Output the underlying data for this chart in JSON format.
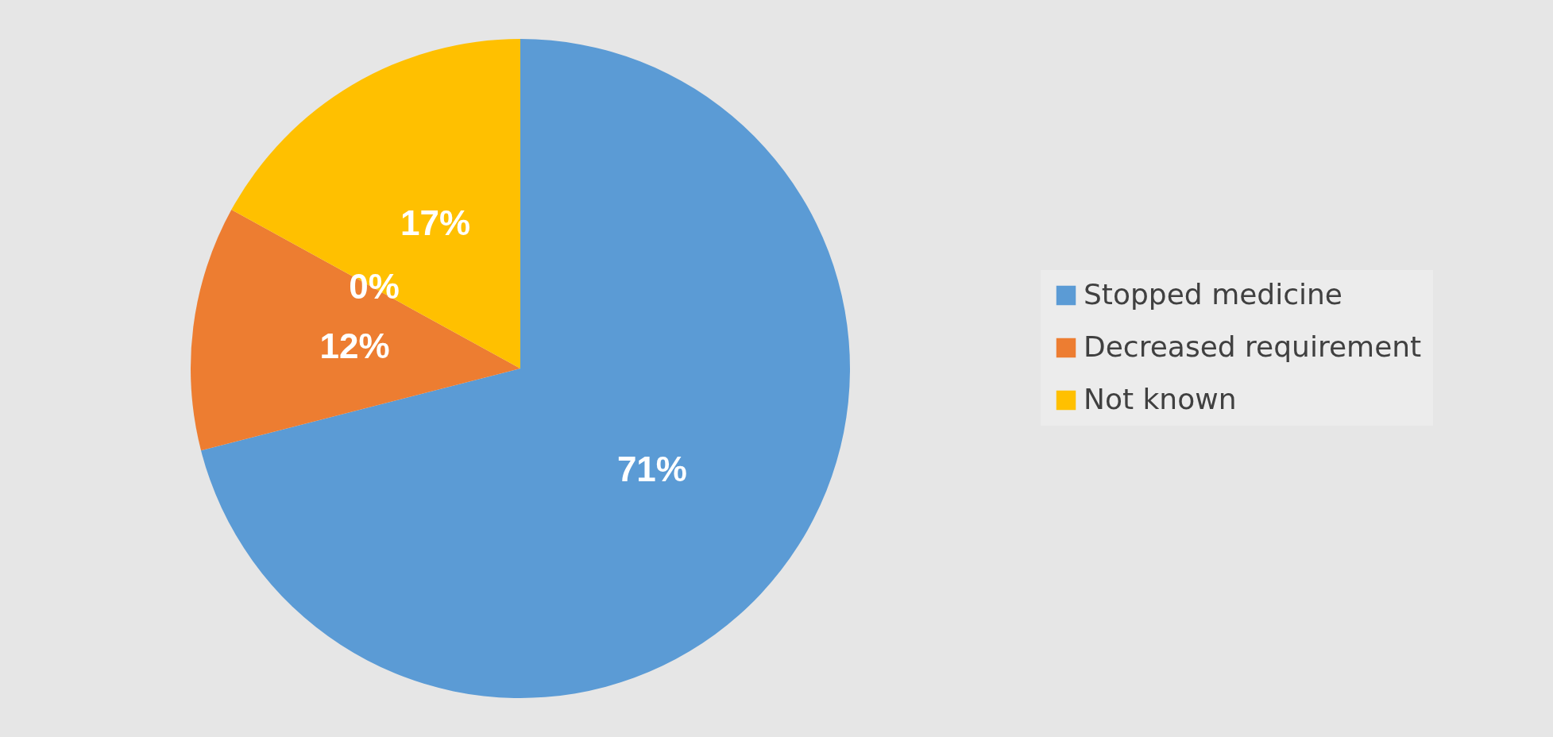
{
  "chart_data": {
    "type": "pie",
    "categories": [
      "Stopped medicine",
      "Decreased requirement",
      null,
      "Not known"
    ],
    "values": [
      71,
      12,
      0,
      17
    ],
    "colors": [
      "#5b9bd5",
      "#ed7d31",
      "#a5a5a5",
      "#ffc000"
    ],
    "value_labels": [
      "71%",
      "12%",
      "0%",
      "17%"
    ],
    "legend": "right"
  }
}
